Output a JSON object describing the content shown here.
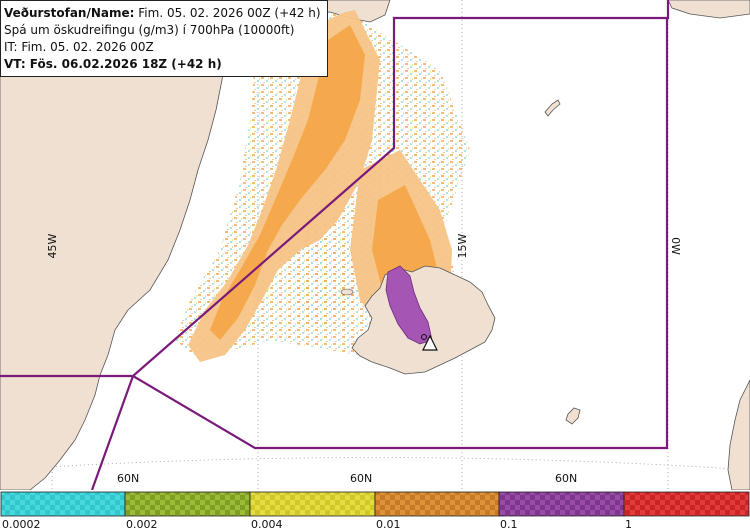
{
  "info": {
    "line1_prefix": "Veðurstofan/Name:",
    "line1_value": "Fim. 05. 02. 2026 00Z (+42 h)",
    "line2": "Spá um öskudreifingu (g/m3) í 700hPa (10000ft)",
    "line3": "IT: Fim. 05. 02. 2026 00Z",
    "line4": "VT: Fös. 06.02.2026 18Z (+42 h)"
  },
  "map": {
    "meridian_labels": [
      "45W",
      "15W",
      "0W"
    ],
    "parallel_labels": [
      "60N",
      "60N",
      "60N"
    ],
    "colors": {
      "land": "#efe0d2",
      "coast": "#555555",
      "boundary": "#7a1a7a",
      "grid": "#999999",
      "ash_light": "#f7c487",
      "ash_mid": "#f5a94c",
      "ash_purple": "#a556b4"
    },
    "volcano_icon": "volcano-triangle-icon"
  },
  "legend": {
    "labels": [
      "0.0002",
      "0.002",
      "0.004",
      "0.01",
      "0.1",
      "1"
    ],
    "colors": [
      "#2fc7cc",
      "#8cae2b",
      "#d9d22f",
      "#d4862d",
      "#8b3e98",
      "#d92d2d"
    ]
  }
}
